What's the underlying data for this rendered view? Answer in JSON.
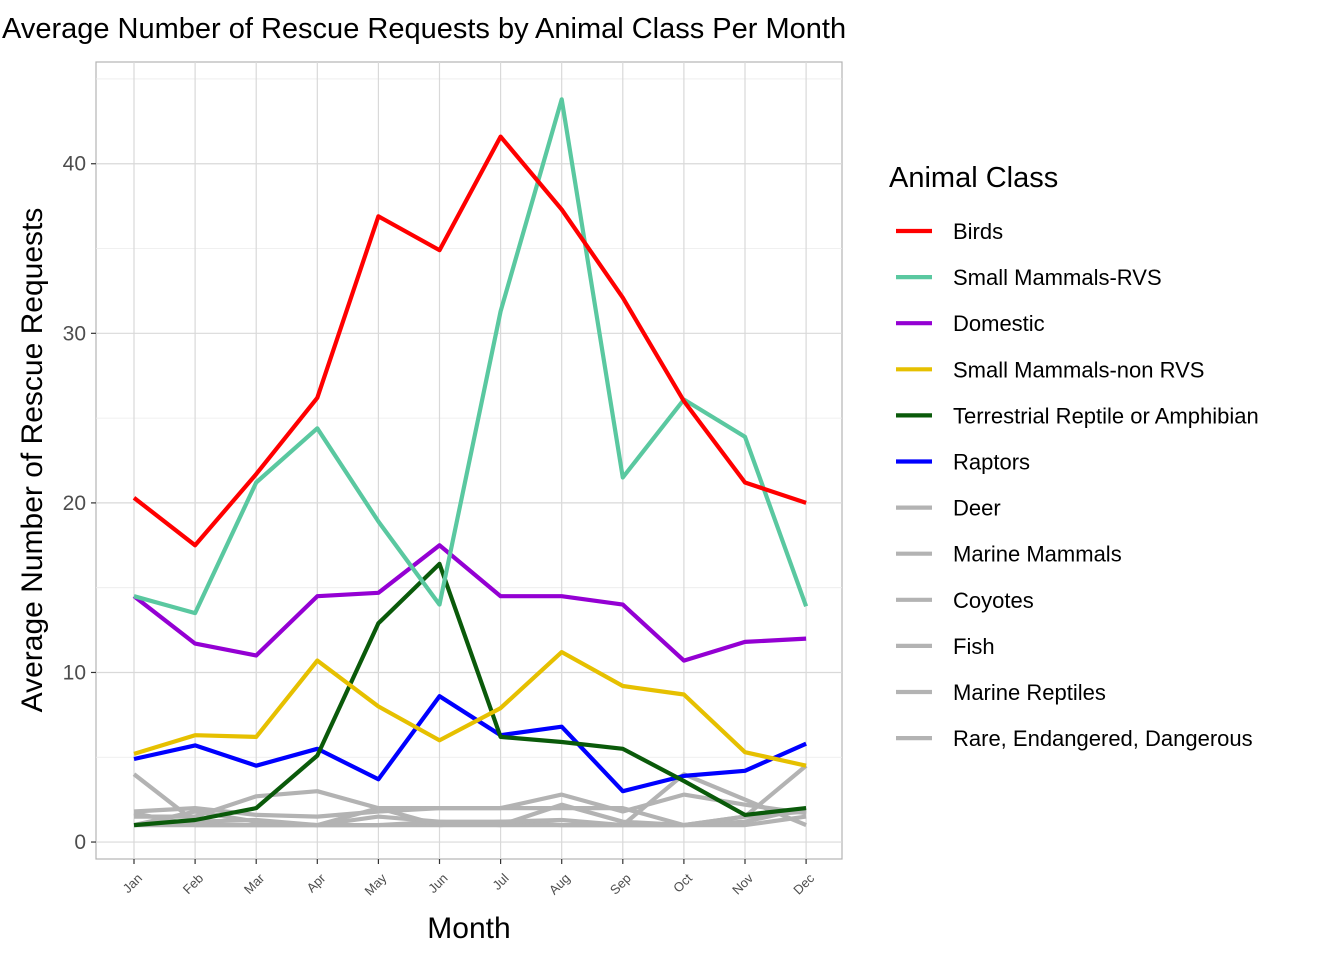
{
  "chart_data": {
    "type": "line",
    "title": "Average Number of Rescue Requests by Animal Class Per Month",
    "xlabel": "Month",
    "ylabel": "Average Number of Rescue Requests",
    "categories": [
      "Jan",
      "Feb",
      "Mar",
      "Apr",
      "May",
      "Jun",
      "Jul",
      "Aug",
      "Sep",
      "Oct",
      "Nov",
      "Dec"
    ],
    "ylim": [
      -1,
      46
    ],
    "yticks": [
      0,
      10,
      20,
      30,
      40
    ],
    "grid": true,
    "legend": {
      "title": "Animal Class",
      "position": "right"
    },
    "series": [
      {
        "name": "Birds",
        "color": "#ff0000",
        "values": [
          20.3,
          17.5,
          21.7,
          26.2,
          36.9,
          34.9,
          41.6,
          37.3,
          32.1,
          26.0,
          21.2,
          20.0
        ]
      },
      {
        "name": "Small Mammals-RVS",
        "color": "#5ac8a0",
        "values": [
          14.5,
          13.5,
          21.2,
          24.4,
          18.9,
          14.0,
          31.3,
          43.8,
          21.5,
          26.1,
          23.9,
          13.9
        ]
      },
      {
        "name": "Domestic",
        "color": "#9400d3",
        "values": [
          14.5,
          11.7,
          11.0,
          14.5,
          14.7,
          17.5,
          14.5,
          14.5,
          14.0,
          10.7,
          11.8,
          12.0
        ]
      },
      {
        "name": "Small Mammals-non RVS",
        "color": "#e6c000",
        "values": [
          5.2,
          6.3,
          6.2,
          10.7,
          8.0,
          6.0,
          7.9,
          11.2,
          9.2,
          8.7,
          5.3,
          4.5
        ]
      },
      {
        "name": "Terrestrial Reptile or Amphibian",
        "color": "#0a5a0a",
        "values": [
          1.0,
          1.3,
          2.0,
          5.1,
          12.9,
          16.4,
          6.2,
          5.9,
          5.5,
          3.6,
          1.6,
          2.0
        ]
      },
      {
        "name": "Raptors",
        "color": "#0000ff",
        "values": [
          4.9,
          5.7,
          4.5,
          5.5,
          3.7,
          8.6,
          6.3,
          6.8,
          3.0,
          3.9,
          4.2,
          5.8
        ]
      },
      {
        "name": "Deer",
        "color": "#b3b3b3",
        "values": [
          4.0,
          1.2,
          1.3,
          1.0,
          1.0,
          1.2,
          1.2,
          1.3,
          1.0,
          4.0,
          2.5,
          1.0
        ]
      },
      {
        "name": "Marine Mammals",
        "color": "#b3b3b3",
        "values": [
          1.8,
          2.0,
          1.6,
          1.5,
          1.8,
          2.0,
          2.0,
          2.8,
          1.8,
          2.8,
          2.2,
          1.7
        ]
      },
      {
        "name": "Coyotes",
        "color": "#b3b3b3",
        "values": [
          1.5,
          1.5,
          2.7,
          3.0,
          2.0,
          1.0,
          1.0,
          2.2,
          1.2,
          1.0,
          1.5,
          4.5
        ]
      },
      {
        "name": "Fish",
        "color": "#b3b3b3",
        "values": [
          1.0,
          1.0,
          1.0,
          1.0,
          1.5,
          1.2,
          1.0,
          1.0,
          1.0,
          1.0,
          1.0,
          1.5
        ]
      },
      {
        "name": "Marine Reptiles",
        "color": "#b3b3b3",
        "values": [
          1.0,
          1.8,
          1.2,
          1.0,
          2.0,
          2.0,
          2.0,
          2.0,
          2.0,
          1.0,
          1.5,
          1.8
        ]
      },
      {
        "name": "Rare, Endangered, Dangerous",
        "color": "#b3b3b3",
        "values": [
          1.7,
          1.0,
          1.0,
          1.0,
          1.0,
          1.0,
          1.2,
          1.0,
          1.0,
          1.0,
          1.2,
          2.0
        ]
      }
    ]
  }
}
